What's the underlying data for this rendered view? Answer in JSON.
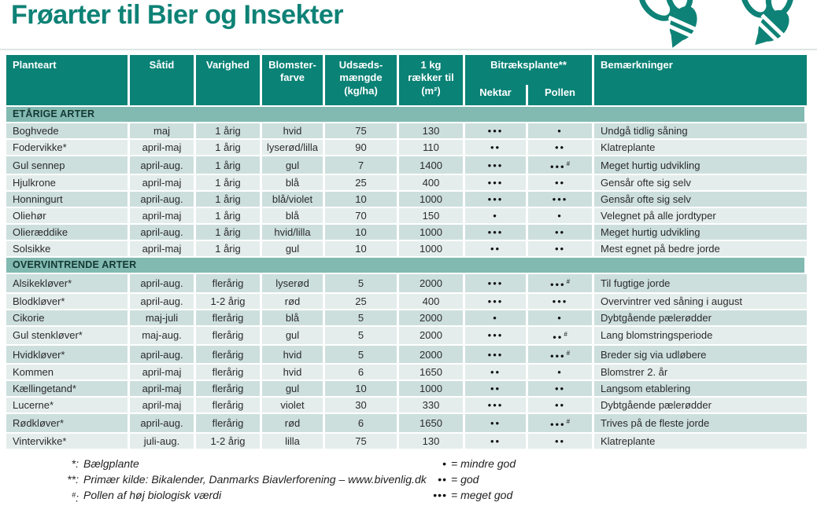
{
  "title": "Frøarter til Bier og Insekter",
  "colors": {
    "brand_teal": "#0a8276",
    "title_teal": "#0e8276",
    "section_band": "#82bab2",
    "row_dark": "#ccdfdd",
    "row_light": "#e4edeb",
    "header_text": "#ffffff"
  },
  "symbols": {
    "dot_char": "•",
    "hash_note": "#"
  },
  "header": {
    "planteart": "Planteart",
    "saatid": "Såtid",
    "varighed": "Varighed",
    "blomsterfarve": [
      "Blomster-",
      "farve"
    ],
    "udsaedsmaengde": [
      "Udsæds-",
      "mængde",
      "(kg/ha)"
    ],
    "raekker": [
      "1 kg",
      "rækker til",
      "(m²)"
    ],
    "bitraeksplante": "Bitræksplante**",
    "nektar": "Nektar",
    "pollen": "Pollen",
    "bemaerkninger": "Bemærkninger"
  },
  "sections": [
    {
      "label": "ETÅRIGE ARTER",
      "rows": [
        {
          "planteart": "Boghvede",
          "saatid": "maj",
          "varighed": "1 årig",
          "blomsterfarve": "hvid",
          "udsaedsmaengde": "75",
          "raekker": "130",
          "nektar": 3,
          "pollen": 1,
          "pollen_hash": false,
          "bemaerkninger": "Undgå tidlig såning"
        },
        {
          "planteart": "Fodervikke*",
          "saatid": "april-maj",
          "varighed": "1 årig",
          "blomsterfarve": "lyserød/lilla",
          "udsaedsmaengde": "90",
          "raekker": "110",
          "nektar": 2,
          "pollen": 2,
          "pollen_hash": false,
          "bemaerkninger": "Klatreplante"
        },
        {
          "planteart": "Gul sennep",
          "saatid": "april-aug.",
          "varighed": "1 årig",
          "blomsterfarve": "gul",
          "udsaedsmaengde": "7",
          "raekker": "1400",
          "nektar": 3,
          "pollen": 3,
          "pollen_hash": true,
          "bemaerkninger": "Meget hurtig udvikling"
        },
        {
          "planteart": "Hjulkrone",
          "saatid": "april-maj",
          "varighed": "1 årig",
          "blomsterfarve": "blå",
          "udsaedsmaengde": "25",
          "raekker": "400",
          "nektar": 3,
          "pollen": 2,
          "pollen_hash": false,
          "bemaerkninger": "Gensår ofte sig selv"
        },
        {
          "planteart": "Honningurt",
          "saatid": "april-aug.",
          "varighed": "1 årig",
          "blomsterfarve": "blå/violet",
          "udsaedsmaengde": "10",
          "raekker": "1000",
          "nektar": 3,
          "pollen": 3,
          "pollen_hash": false,
          "bemaerkninger": "Gensår ofte sig selv"
        },
        {
          "planteart": "Oliehør",
          "saatid": "april-maj",
          "varighed": "1 årig",
          "blomsterfarve": "blå",
          "udsaedsmaengde": "70",
          "raekker": "150",
          "nektar": 1,
          "pollen": 1,
          "pollen_hash": false,
          "bemaerkninger": "Velegnet på alle jordtyper"
        },
        {
          "planteart": "Olieræddike",
          "saatid": "april-aug.",
          "varighed": "1 årig",
          "blomsterfarve": "hvid/lilla",
          "udsaedsmaengde": "10",
          "raekker": "1000",
          "nektar": 3,
          "pollen": 2,
          "pollen_hash": false,
          "bemaerkninger": "Meget hurtig udvikling"
        },
        {
          "planteart": "Solsikke",
          "saatid": "april-maj",
          "varighed": "1 årig",
          "blomsterfarve": "gul",
          "udsaedsmaengde": "10",
          "raekker": "1000",
          "nektar": 2,
          "pollen": 2,
          "pollen_hash": false,
          "bemaerkninger": "Mest egnet på bedre jorde"
        }
      ]
    },
    {
      "label": "OVERVINTRENDE ARTER",
      "rows": [
        {
          "planteart": "Alsikekløver*",
          "saatid": "april-aug.",
          "varighed": "flerårig",
          "blomsterfarve": "lyserød",
          "udsaedsmaengde": "5",
          "raekker": "2000",
          "nektar": 3,
          "pollen": 3,
          "pollen_hash": true,
          "bemaerkninger": "Til fugtige jorde"
        },
        {
          "planteart": "Blodkløver*",
          "saatid": "april-aug.",
          "varighed": "1-2 årig",
          "blomsterfarve": "rød",
          "udsaedsmaengde": "25",
          "raekker": "400",
          "nektar": 3,
          "pollen": 3,
          "pollen_hash": false,
          "bemaerkninger": "Overvintrer ved såning i august"
        },
        {
          "planteart": "Cikorie",
          "saatid": "maj-juli",
          "varighed": "flerårig",
          "blomsterfarve": "blå",
          "udsaedsmaengde": "5",
          "raekker": "2000",
          "nektar": 1,
          "pollen": 1,
          "pollen_hash": false,
          "bemaerkninger": "Dybtgående pælerødder"
        },
        {
          "planteart": "Gul stenkløver*",
          "saatid": "maj-aug.",
          "varighed": "flerårig",
          "blomsterfarve": "gul",
          "udsaedsmaengde": "5",
          "raekker": "2000",
          "nektar": 3,
          "pollen": 2,
          "pollen_hash": true,
          "bemaerkninger": "Lang blomstringsperiode"
        },
        {
          "planteart": "Hvidkløver*",
          "saatid": "april-aug.",
          "varighed": "flerårig",
          "blomsterfarve": "hvid",
          "udsaedsmaengde": "5",
          "raekker": "2000",
          "nektar": 3,
          "pollen": 3,
          "pollen_hash": true,
          "bemaerkninger": "Breder sig via udløbere"
        },
        {
          "planteart": "Kommen",
          "saatid": "april-maj",
          "varighed": "flerårig",
          "blomsterfarve": "hvid",
          "udsaedsmaengde": "6",
          "raekker": "1650",
          "nektar": 2,
          "pollen": 1,
          "pollen_hash": false,
          "bemaerkninger": "Blomstrer 2. år"
        },
        {
          "planteart": "Kællingetand*",
          "saatid": "april-maj",
          "varighed": "flerårig",
          "blomsterfarve": "gul",
          "udsaedsmaengde": "10",
          "raekker": "1000",
          "nektar": 2,
          "pollen": 2,
          "pollen_hash": false,
          "bemaerkninger": "Langsom etablering"
        },
        {
          "planteart": "Lucerne*",
          "saatid": "april-maj",
          "varighed": "flerårig",
          "blomsterfarve": "violet",
          "udsaedsmaengde": "30",
          "raekker": "330",
          "nektar": 3,
          "pollen": 2,
          "pollen_hash": false,
          "bemaerkninger": "Dybtgående pælerødder"
        },
        {
          "planteart": "Rødkløver*",
          "saatid": "april-aug.",
          "varighed": "flerårig",
          "blomsterfarve": "rød",
          "udsaedsmaengde": "6",
          "raekker": "1650",
          "nektar": 2,
          "pollen": 3,
          "pollen_hash": true,
          "bemaerkninger": "Trives på de fleste jorde"
        },
        {
          "planteart": "Vintervikke*",
          "saatid": "juli-aug.",
          "varighed": "1-2 årig",
          "blomsterfarve": "lilla",
          "udsaedsmaengde": "75",
          "raekker": "130",
          "nektar": 2,
          "pollen": 2,
          "pollen_hash": false,
          "bemaerkninger": "Klatreplante"
        }
      ]
    }
  ],
  "footnotes": [
    {
      "marker": "*",
      "text": "Bælgplante"
    },
    {
      "marker": "**",
      "text": "Primær kilde: Bikalender, Danmarks Biavlerforening – www.bivenlig.dk"
    },
    {
      "marker": "#",
      "superscript": true,
      "text": "Pollen af høj biologisk værdi"
    }
  ],
  "legend": [
    {
      "dots": 1,
      "label": "mindre god"
    },
    {
      "dots": 2,
      "label": "god"
    },
    {
      "dots": 3,
      "label": "meget god"
    }
  ]
}
